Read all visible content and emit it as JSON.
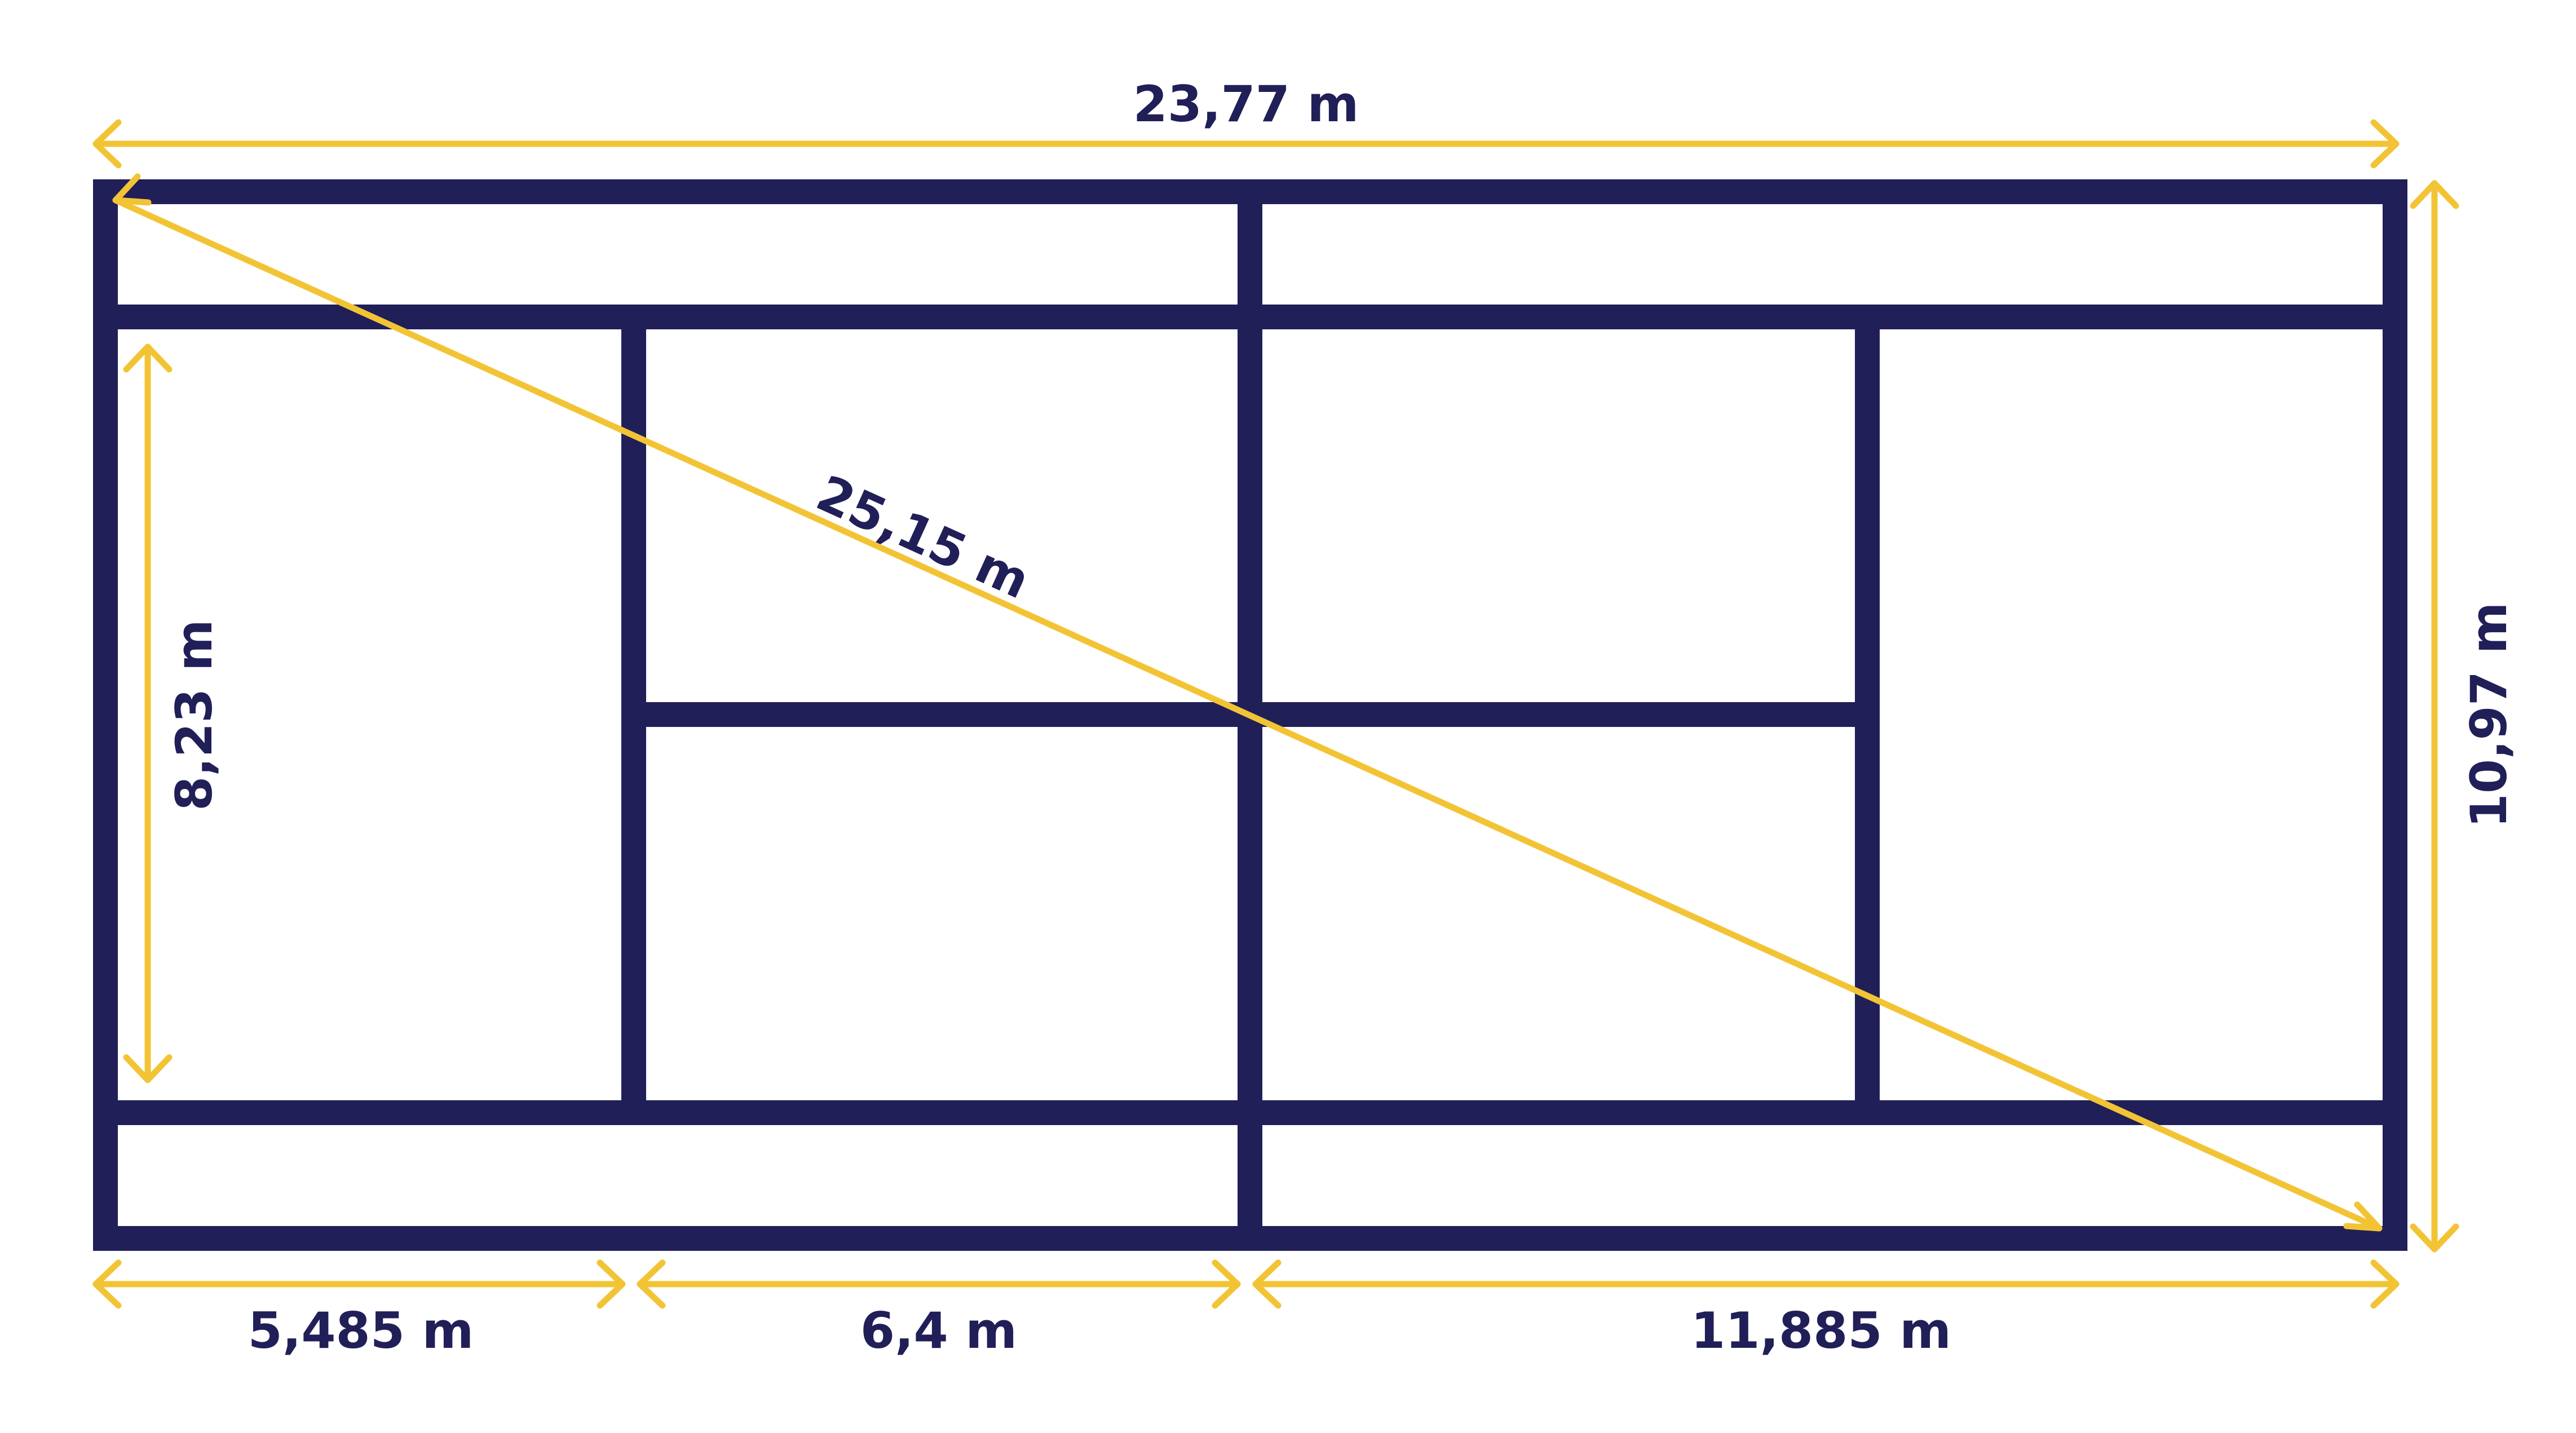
{
  "colors": {
    "court_line": "#201F58",
    "dimension_arrow": "#F2C435",
    "label_text": "#201F58",
    "background": "#FFFFFF"
  },
  "dimensions": {
    "total_length": "23,77 m",
    "total_width": "10,97 m",
    "singles_width": "8,23 m",
    "diagonal": "25,15 m",
    "baseline_to_service_line": "5,485 m",
    "service_line_to_net": "6,4 m",
    "half_court_length": "11,885 m"
  }
}
